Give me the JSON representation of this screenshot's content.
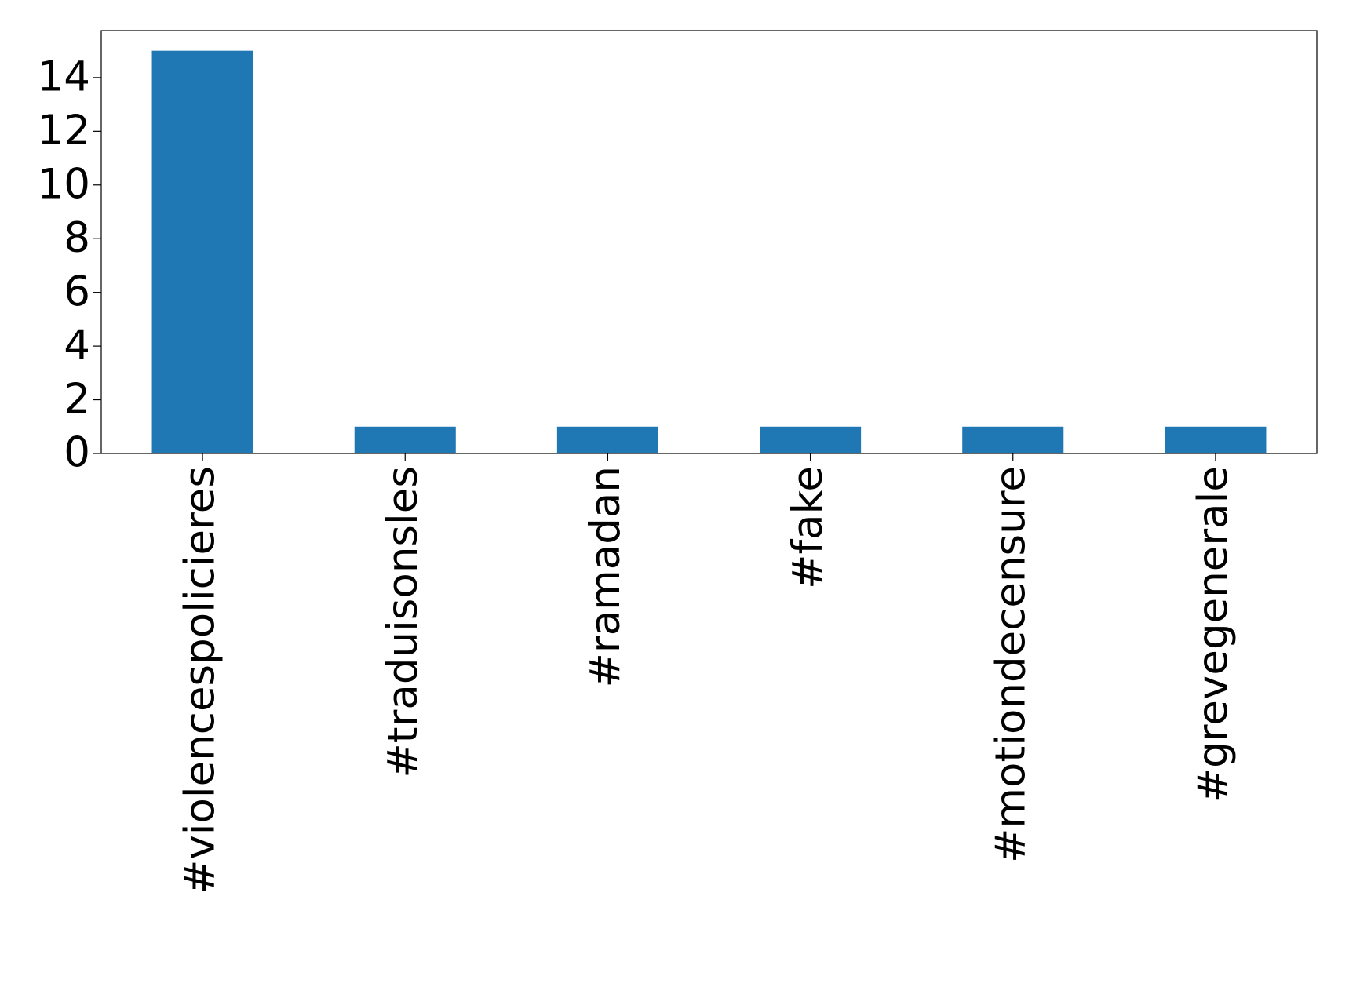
{
  "chart_data": {
    "type": "bar",
    "categories": [
      "#violencespolicieres",
      "#traduisonsles",
      "#ramadan",
      "#fake",
      "#motiondecensure",
      "#grevegenerale"
    ],
    "values": [
      15,
      1,
      1,
      1,
      1,
      1
    ],
    "color": "#1f77b4",
    "ylim": [
      0,
      15.75
    ],
    "yticks": [
      0,
      2,
      4,
      6,
      8,
      10,
      12,
      14
    ],
    "grid": false
  }
}
